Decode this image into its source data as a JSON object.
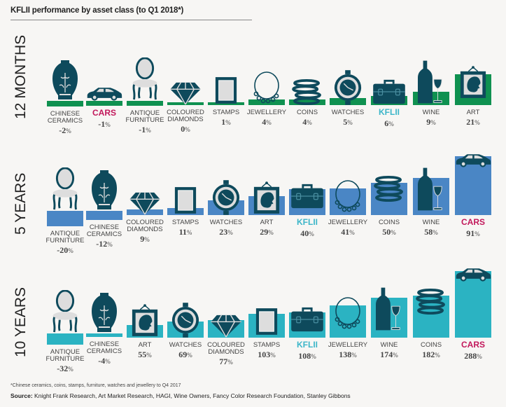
{
  "title": "KFLII performance by asset class (to Q1 2018*)",
  "footnote": "*Chinese ceramics, coins, stamps, furniture, watches and jewellery to Q4 2017",
  "source_label": "Source:",
  "source_text": "Knight Frank Research, Art Market Research, HAGI, Wine Owners, Fancy Color Research Foundation, Stanley Gibbons",
  "colors": {
    "twelve_months": "#0f9150",
    "five_years": "#4a86c5",
    "ten_years": "#2bb3c2",
    "icon": "#0e4a5c",
    "kflii": "#3db6c9",
    "cars": "#c2185b"
  },
  "chart_data": [
    {
      "type": "bar",
      "title": "12 MONTHS",
      "categories": [
        "CHINESE CERAMICS",
        "CARS",
        "ANTIQUE FURNITURE",
        "COLOURED DIAMONDS",
        "STAMPS",
        "JEWELLERY",
        "COINS",
        "WATCHES",
        "KFLII",
        "WINE",
        "ART"
      ],
      "values": [
        -2,
        -1,
        -1,
        0,
        1,
        4,
        4,
        5,
        6,
        9,
        21
      ],
      "unit": "%"
    },
    {
      "type": "bar",
      "title": "5 YEARS",
      "categories": [
        "ANTIQUE FURNITURE",
        "CHINESE CERAMICS",
        "COLOURED DIAMONDS",
        "STAMPS",
        "WATCHES",
        "ART",
        "KFLII",
        "JEWELLERY",
        "COINS",
        "WINE",
        "CARS"
      ],
      "values": [
        -20,
        -12,
        9,
        11,
        23,
        29,
        40,
        41,
        50,
        58,
        91
      ],
      "unit": "%"
    },
    {
      "type": "bar",
      "title": "10 YEARS",
      "categories": [
        "ANTIQUE FURNITURE",
        "CHINESE CERAMICS",
        "ART",
        "WATCHES",
        "COLOURED DIAMONDS",
        "STAMPS",
        "KFLII",
        "JEWELLERY",
        "WINE",
        "COINS",
        "CARS"
      ],
      "values": [
        -32,
        -4,
        55,
        69,
        77,
        103,
        108,
        138,
        174,
        182,
        288
      ],
      "unit": "%"
    }
  ]
}
